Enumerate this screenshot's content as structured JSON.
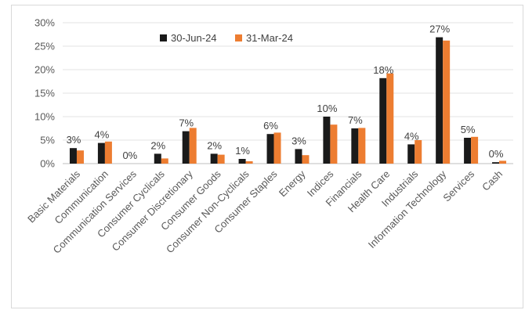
{
  "chart_data": {
    "type": "bar",
    "categories": [
      "Basic Materials",
      "Communication",
      "Communication Services",
      "Consumer Cyclicals",
      "Consumer Discretionary",
      "Consumer Goods",
      "Consumer Non-Cyclicals",
      "Consumer Staples",
      "Energy",
      "Indices",
      "Financials",
      "Health Care",
      "Industrials",
      "Information Technology",
      "Services",
      "Cash"
    ],
    "series": [
      {
        "name": "30-Jun-24",
        "color": "#1a1a1a",
        "values": [
          3.3,
          4.4,
          0,
          2.1,
          6.9,
          2.1,
          1.0,
          6.3,
          3.1,
          10.0,
          7.5,
          18.2,
          4.1,
          26.9,
          5.5,
          0.3
        ]
      },
      {
        "name": "31-Mar-24",
        "color": "#ed7d31",
        "values": [
          2.8,
          4.7,
          0,
          1.1,
          7.6,
          1.9,
          0.5,
          6.6,
          1.8,
          8.3,
          7.6,
          19.2,
          5.0,
          26.2,
          5.7,
          0.6
        ]
      }
    ],
    "data_labels": [
      "3%",
      "4%",
      "0%",
      "2%",
      "7%",
      "2%",
      "1%",
      "6%",
      "3%",
      "10%",
      "7%",
      "18%",
      "4%",
      "27%",
      "5%",
      "0%"
    ],
    "ylim": [
      0,
      30
    ],
    "y_ticks": [
      "0%",
      "5%",
      "10%",
      "15%",
      "20%",
      "25%",
      "30%"
    ],
    "grid": true,
    "legend_position": "top-left"
  }
}
